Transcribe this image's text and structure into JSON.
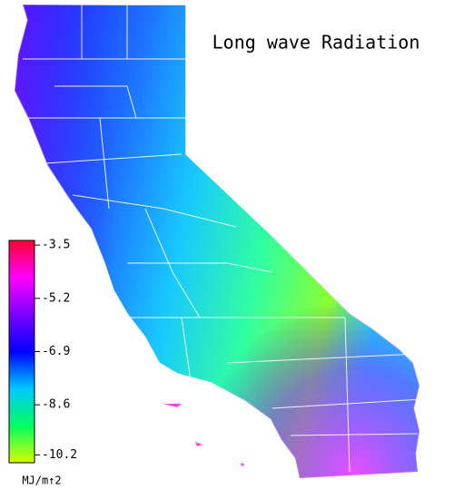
{
  "title": "Long wave Radiation",
  "colorbar": {
    "unit": "MJ/m↑2",
    "clim": [
      -3.35,
      -10.45
    ],
    "ticks": [
      -3.5,
      -5.2,
      -6.9,
      -8.6,
      -10.2
    ],
    "colors": [
      "#ff0030",
      "#ff00ff",
      "#7a00ff",
      "#0000ff",
      "#00c8ff",
      "#00ff60",
      "#d8ff00"
    ]
  }
}
